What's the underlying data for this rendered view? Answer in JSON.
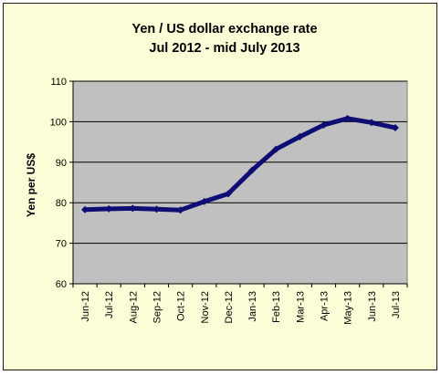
{
  "chart_data": {
    "type": "line",
    "title": "Yen / US dollar exchange rate",
    "subtitle": "Jul 2012 - mid July 2013",
    "xlabel": "",
    "ylabel": "Yen per US$",
    "categories": [
      "Jun-12",
      "Jul-12",
      "Aug-12",
      "Sep-12",
      "Oct-12",
      "Nov-12",
      "Dec-12",
      "Jan-13",
      "Feb-13",
      "Mar-13",
      "Apr-13",
      "May-13",
      "Jun-13",
      "Jul-13"
    ],
    "yticks": [
      "60",
      "70",
      "80",
      "90",
      "100",
      "110"
    ],
    "ylim": [
      60,
      110
    ],
    "grid": true,
    "legend": "none",
    "series": [
      {
        "values": [
          78.3,
          78.5,
          78.6,
          78.4,
          78.2,
          80.3,
          82.2,
          88.0,
          93.2,
          96.3,
          99.2,
          100.8,
          99.8,
          98.5
        ]
      }
    ],
    "colors": {
      "line": "#0d0d73",
      "plot_bg": "#c0c0c0",
      "chart_bg": "#fdfdd8",
      "grid": "#000000"
    }
  }
}
